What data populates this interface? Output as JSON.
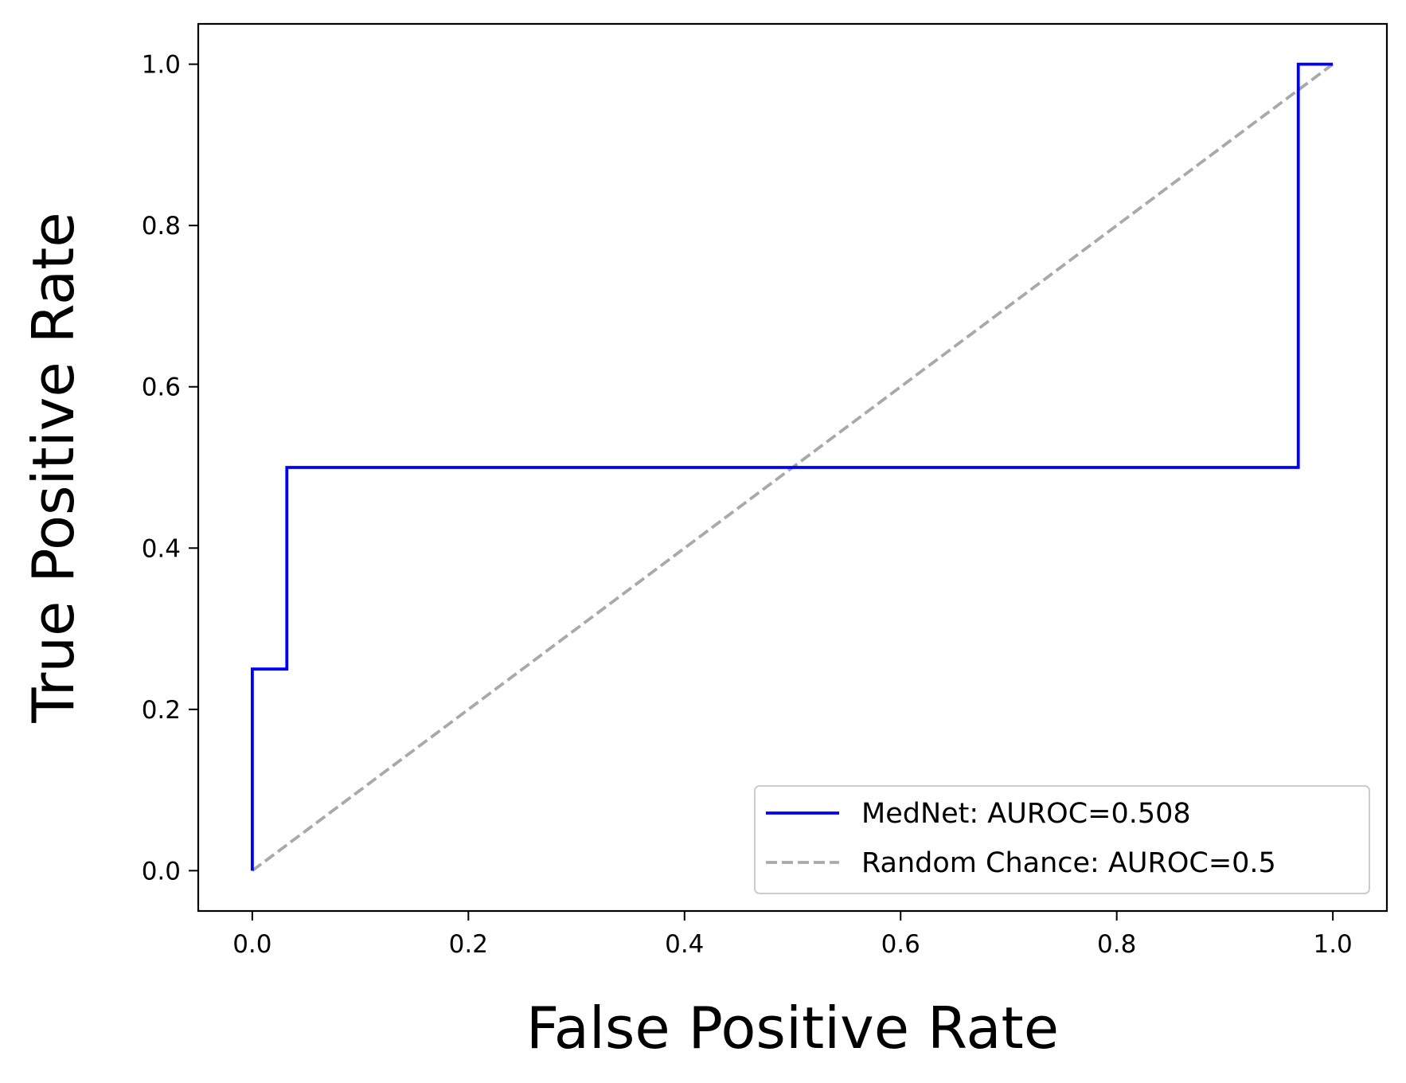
{
  "chart_data": {
    "type": "line",
    "title": "",
    "xlabel": "False Positive Rate",
    "ylabel": "True Positive Rate",
    "xlim": [
      -0.05,
      1.05
    ],
    "ylim": [
      -0.05,
      1.05
    ],
    "xticks": [
      0.0,
      0.2,
      0.4,
      0.6,
      0.8,
      1.0
    ],
    "xtick_labels": [
      "0.0",
      "0.2",
      "0.4",
      "0.6",
      "0.8",
      "1.0"
    ],
    "yticks": [
      0.0,
      0.2,
      0.4,
      0.6,
      0.8,
      1.0
    ],
    "ytick_labels": [
      "0.0",
      "0.2",
      "0.4",
      "0.6",
      "0.8",
      "1.0"
    ],
    "grid": false,
    "legend_position": "lower-right",
    "series": [
      {
        "name": "MedNet: AUROC=0.508",
        "color": "#0000ff",
        "style": "solid",
        "x": [
          0.0,
          0.0,
          0.032,
          0.032,
          0.968,
          0.968,
          1.0
        ],
        "y": [
          0.0,
          0.25,
          0.25,
          0.5,
          0.5,
          1.0,
          1.0
        ]
      },
      {
        "name": "Random Chance: AUROC=0.5",
        "color": "#a9a9a9",
        "style": "dashed",
        "x": [
          0.0,
          1.0
        ],
        "y": [
          0.0,
          1.0
        ]
      }
    ]
  }
}
